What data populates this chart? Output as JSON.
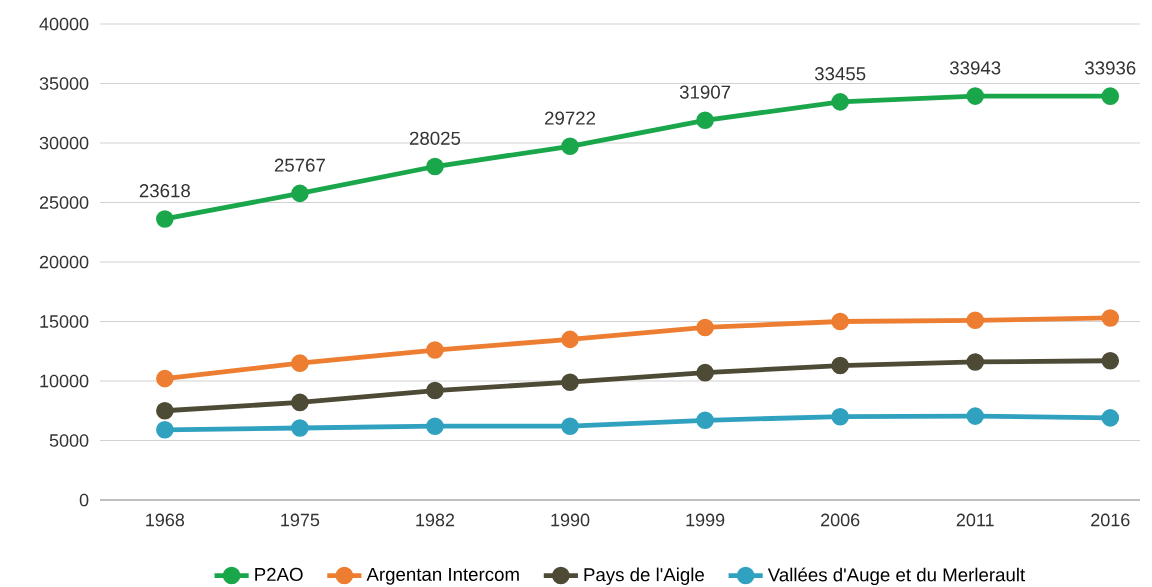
{
  "chart_data": {
    "type": "line",
    "categories": [
      "1968",
      "1975",
      "1982",
      "1990",
      "1999",
      "2006",
      "2011",
      "2016"
    ],
    "series": [
      {
        "name": "P2AO",
        "color": "#1aa64a",
        "values": [
          23618,
          25767,
          28025,
          29722,
          31907,
          33455,
          33943,
          33936
        ],
        "value_labels": [
          "23618",
          "25767",
          "28025",
          "29722",
          "31907",
          "33455",
          "33943",
          "33936"
        ]
      },
      {
        "name": "Argentan Intercom",
        "color": "#ed7d31",
        "values": [
          10200,
          11500,
          12600,
          13500,
          14500,
          15000,
          15100,
          15300
        ]
      },
      {
        "name": "Pays de l'Aigle",
        "color": "#4d4a35",
        "values": [
          7500,
          8200,
          9200,
          9900,
          10700,
          11300,
          11600,
          11700
        ]
      },
      {
        "name": "Vallées d'Auge et du Merlerault",
        "color": "#31a1c0",
        "values": [
          5900,
          6050,
          6200,
          6200,
          6700,
          7000,
          7050,
          6900
        ]
      }
    ],
    "ylim": [
      0,
      40000
    ],
    "yticks": [
      0,
      5000,
      10000,
      15000,
      20000,
      25000,
      30000,
      35000,
      40000
    ],
    "grid": "y",
    "legend": "bottom",
    "marker": "circle",
    "line_style": "solid"
  }
}
